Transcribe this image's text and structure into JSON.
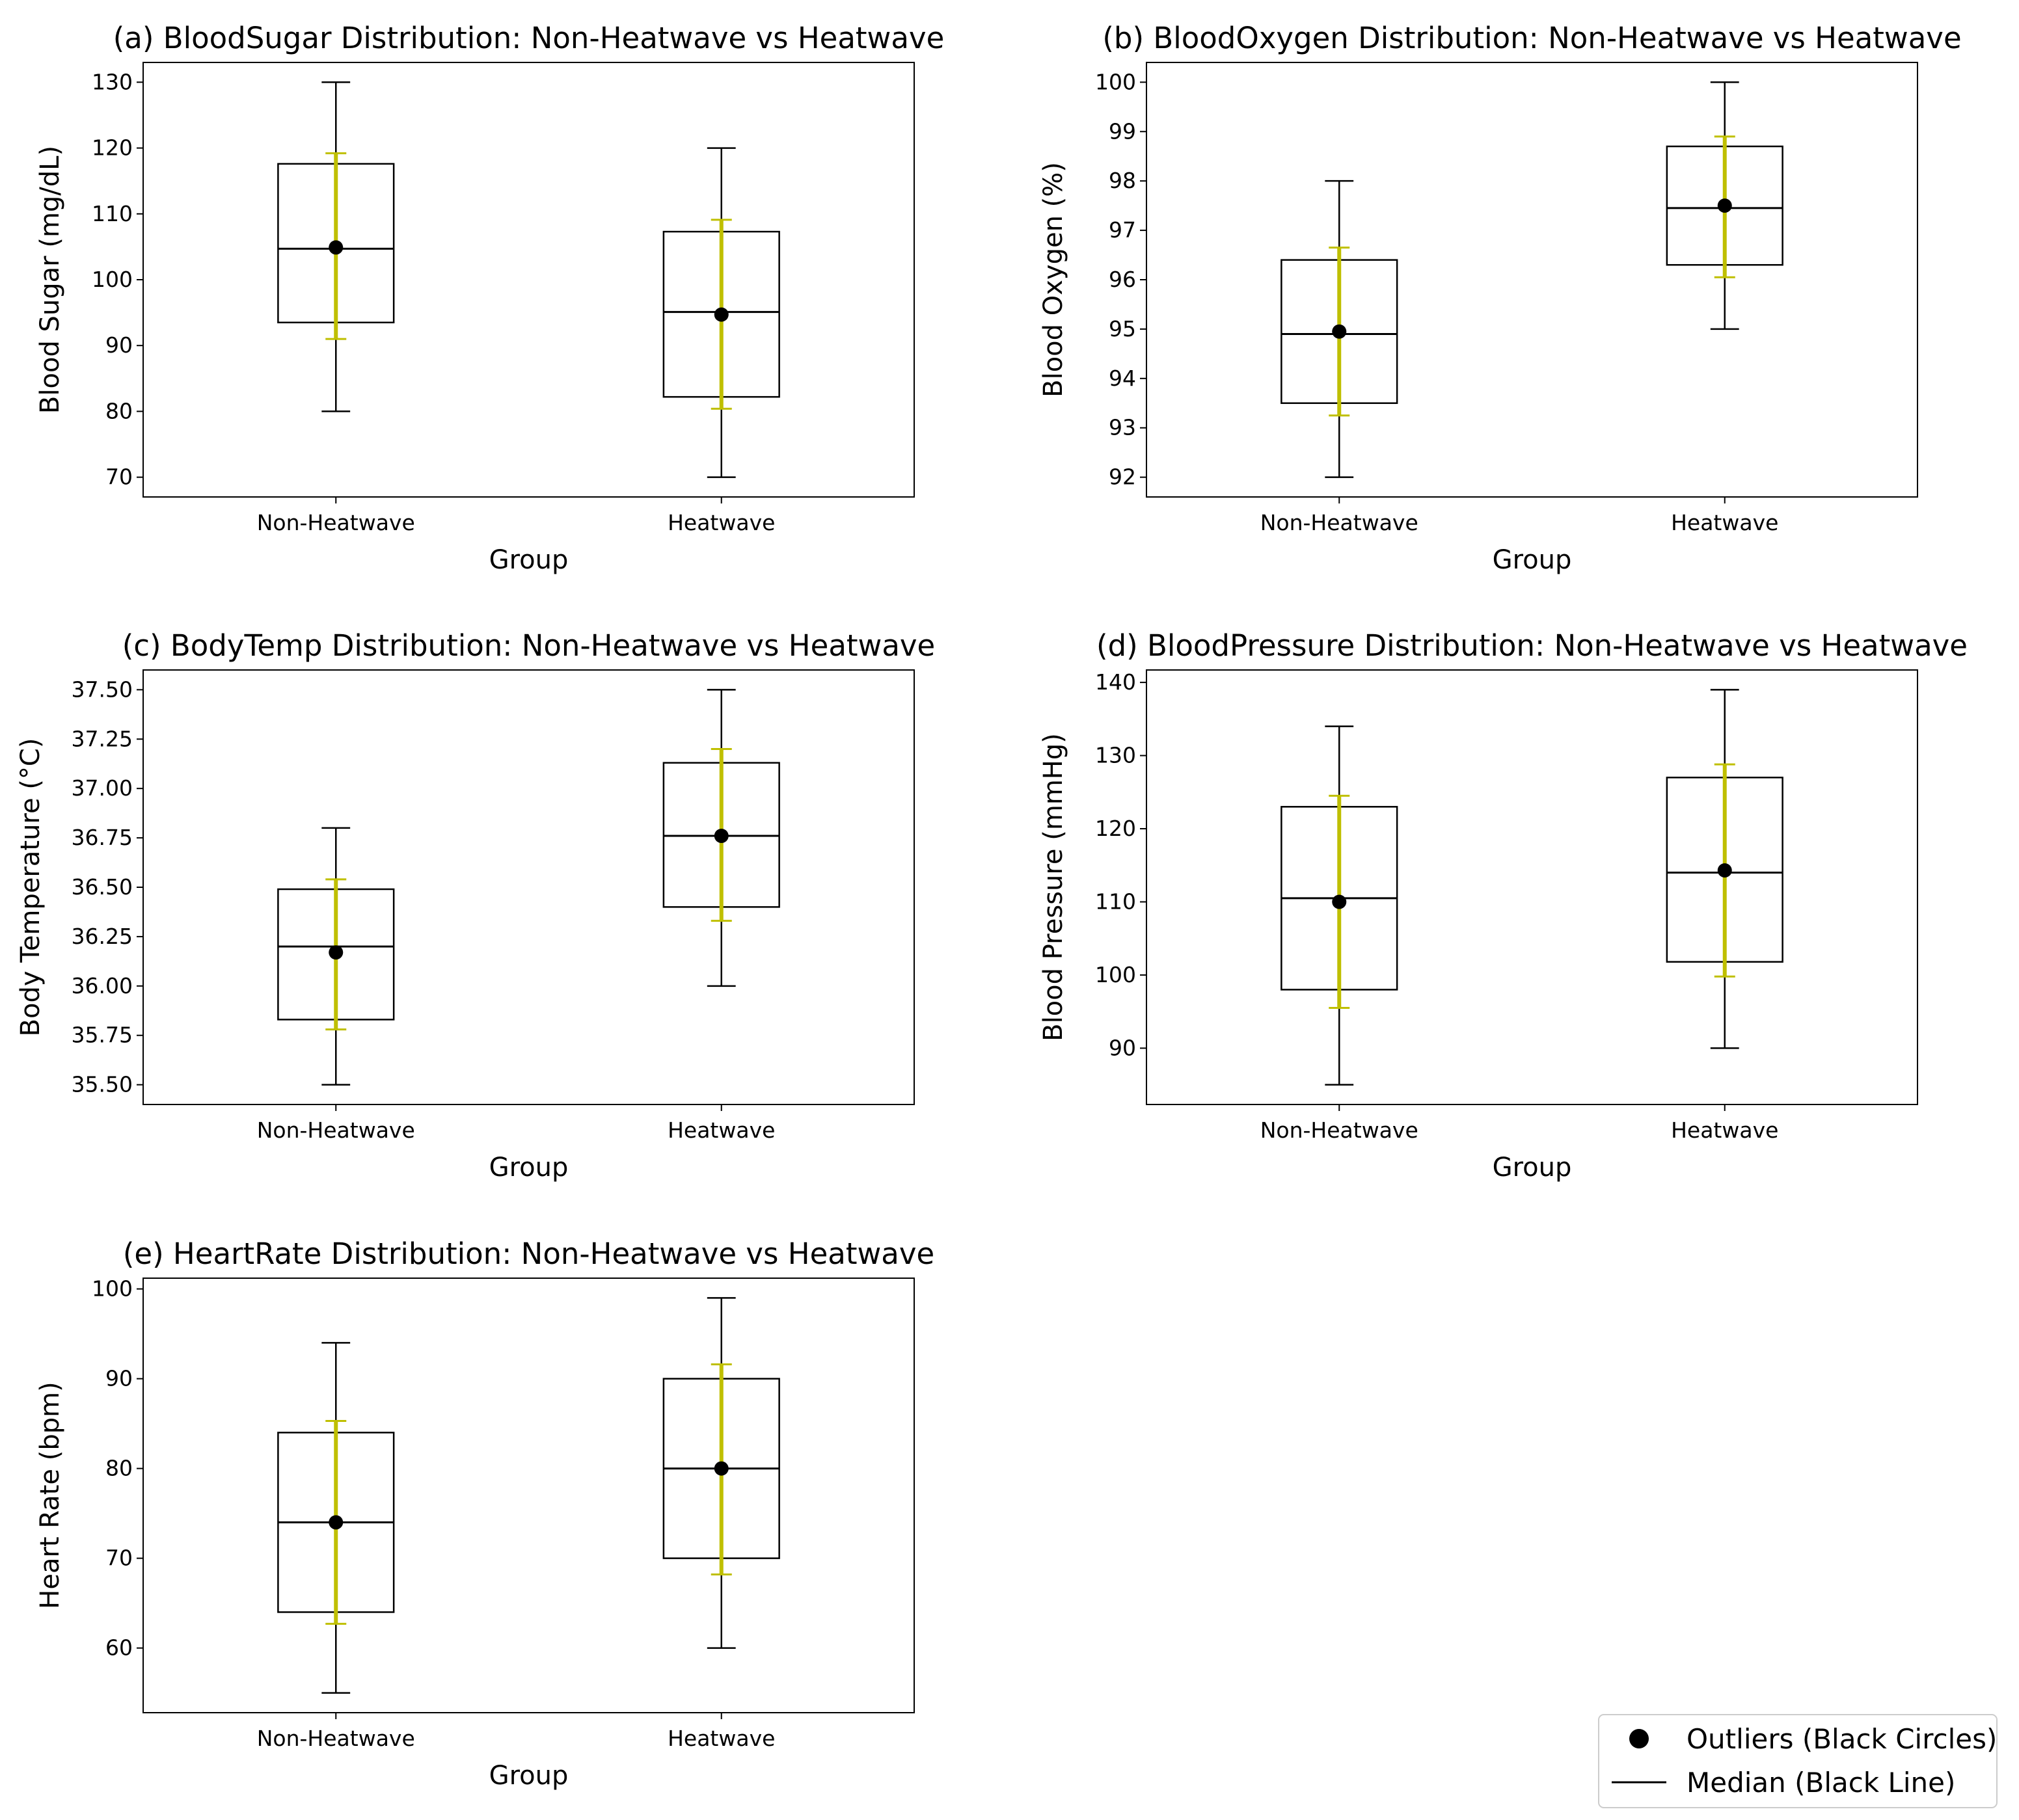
{
  "legend": {
    "items": [
      {
        "label": "Outliers (Black Circles)",
        "marker": "circle"
      },
      {
        "label": "Median (Black Line)",
        "marker": "line"
      }
    ]
  },
  "colors": {
    "box": "#000000",
    "median": "#000000",
    "whisker": "#000000",
    "error_bar": "#bfbf00",
    "mean_marker": "#000000",
    "background": "#ffffff"
  },
  "chart_data": [
    {
      "id": "a",
      "type": "box",
      "title": "(a) BloodSugar Distribution: Non-Heatwave vs Heatwave",
      "xlabel": "Group",
      "ylabel": "Blood Sugar (mg/dL)",
      "ylim": [
        67,
        133
      ],
      "yticks": [
        70,
        80,
        90,
        100,
        110,
        120,
        130
      ],
      "tick_decimals": 0,
      "categories": [
        "Non-Heatwave",
        "Heatwave"
      ],
      "boxes": [
        {
          "whislo": 80,
          "q1": 93.5,
          "med": 104.7,
          "q3": 117.6,
          "whishi": 130,
          "mean": 104.9,
          "err_lo": 91,
          "err_hi": 119.2
        },
        {
          "whislo": 70,
          "q1": 82.2,
          "med": 95.1,
          "q3": 107.3,
          "whishi": 120,
          "mean": 94.7,
          "err_lo": 80.4,
          "err_hi": 109.1
        }
      ]
    },
    {
      "id": "b",
      "type": "box",
      "title": "(b) BloodOxygen Distribution: Non-Heatwave vs Heatwave",
      "xlabel": "Group",
      "ylabel": "Blood Oxygen (%)",
      "ylim": [
        91.6,
        100.4
      ],
      "yticks": [
        92,
        93,
        94,
        95,
        96,
        97,
        98,
        99,
        100
      ],
      "tick_decimals": 0,
      "categories": [
        "Non-Heatwave",
        "Heatwave"
      ],
      "boxes": [
        {
          "whislo": 92,
          "q1": 93.5,
          "med": 94.9,
          "q3": 96.4,
          "whishi": 98,
          "mean": 94.95,
          "err_lo": 93.25,
          "err_hi": 96.65
        },
        {
          "whislo": 95,
          "q1": 96.3,
          "med": 97.45,
          "q3": 98.7,
          "whishi": 100,
          "mean": 97.5,
          "err_lo": 96.05,
          "err_hi": 98.9
        }
      ]
    },
    {
      "id": "c",
      "type": "box",
      "title": "(c) BodyTemp Distribution: Non-Heatwave vs Heatwave",
      "xlabel": "Group",
      "ylabel": "Body Temperature (°C)",
      "ylim": [
        35.4,
        37.6
      ],
      "yticks": [
        35.5,
        35.75,
        36.0,
        36.25,
        36.5,
        36.75,
        37.0,
        37.25,
        37.5
      ],
      "tick_decimals": 2,
      "categories": [
        "Non-Heatwave",
        "Heatwave"
      ],
      "boxes": [
        {
          "whislo": 35.5,
          "q1": 35.83,
          "med": 36.2,
          "q3": 36.49,
          "whishi": 36.8,
          "mean": 36.17,
          "err_lo": 35.78,
          "err_hi": 36.54
        },
        {
          "whislo": 36.0,
          "q1": 36.4,
          "med": 36.76,
          "q3": 37.13,
          "whishi": 37.5,
          "mean": 36.76,
          "err_lo": 36.33,
          "err_hi": 37.2
        }
      ]
    },
    {
      "id": "d",
      "type": "box",
      "title": "(d) BloodPressure Distribution: Non-Heatwave vs Heatwave",
      "xlabel": "Group",
      "ylabel": "Blood Pressure (mmHg)",
      "ylim": [
        82.3,
        141.7
      ],
      "yticks": [
        90,
        100,
        110,
        120,
        130,
        140
      ],
      "tick_decimals": 0,
      "categories": [
        "Non-Heatwave",
        "Heatwave"
      ],
      "boxes": [
        {
          "whislo": 85,
          "q1": 98,
          "med": 110.5,
          "q3": 123,
          "whishi": 134,
          "mean": 110,
          "err_lo": 95.5,
          "err_hi": 124.5
        },
        {
          "whislo": 90,
          "q1": 101.8,
          "med": 114,
          "q3": 127,
          "whishi": 139,
          "mean": 114.3,
          "err_lo": 99.8,
          "err_hi": 128.8
        }
      ]
    },
    {
      "id": "e",
      "type": "box",
      "title": "(e) HeartRate Distribution: Non-Heatwave vs Heatwave",
      "xlabel": "Group",
      "ylabel": "Heart Rate (bpm)",
      "ylim": [
        52.8,
        101.2
      ],
      "yticks": [
        60,
        70,
        80,
        90,
        100
      ],
      "tick_decimals": 0,
      "categories": [
        "Non-Heatwave",
        "Heatwave"
      ],
      "boxes": [
        {
          "whislo": 55,
          "q1": 64,
          "med": 74,
          "q3": 84,
          "whishi": 94,
          "mean": 74,
          "err_lo": 62.7,
          "err_hi": 85.3
        },
        {
          "whislo": 60,
          "q1": 70,
          "med": 80,
          "q3": 90,
          "whishi": 99,
          "mean": 80,
          "err_lo": 68.2,
          "err_hi": 91.6
        }
      ]
    }
  ]
}
